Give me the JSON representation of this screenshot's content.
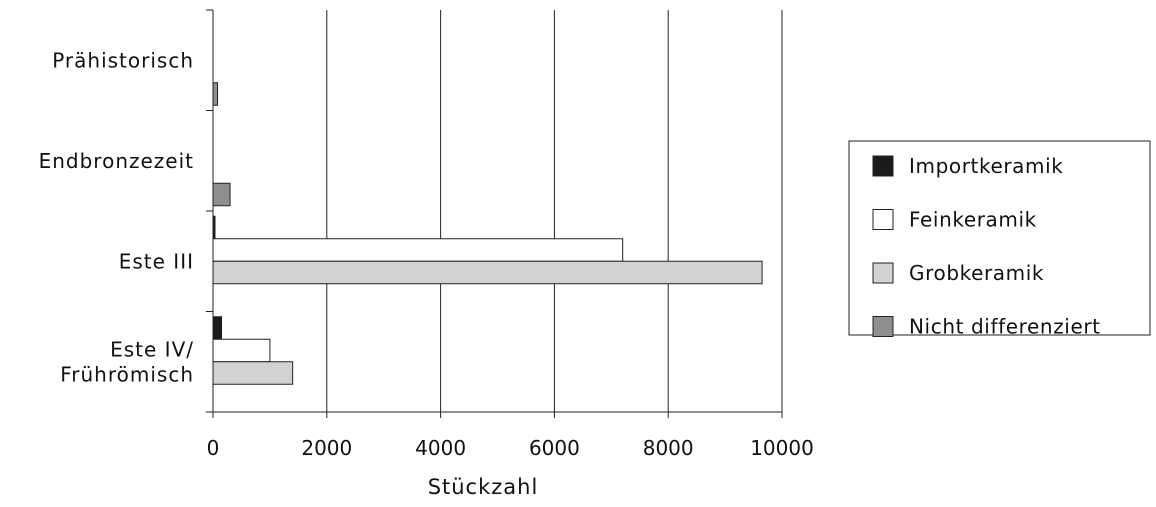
{
  "chart_data": {
    "type": "bar",
    "orientation": "horizontal",
    "categories": [
      [
        "Prähistorisch"
      ],
      [
        "Endbronzezeit"
      ],
      [
        "Este III"
      ],
      [
        "Este IV/",
        "Frührömisch"
      ]
    ],
    "series": [
      {
        "name": "Importkeramik",
        "color": "#1c1a1b",
        "values": [
          0,
          0,
          20,
          150
        ]
      },
      {
        "name": "Feinkeramik",
        "color": "#ffffff",
        "values": [
          0,
          0,
          7200,
          1000
        ]
      },
      {
        "name": "Grobkeramik",
        "color": "#d2d2d2",
        "values": [
          0,
          0,
          9650,
          1400
        ]
      },
      {
        "name": "Nicht differenziert",
        "color": "#8f8f8f",
        "values": [
          80,
          300,
          0,
          0
        ]
      }
    ],
    "xlim": [
      0,
      10000
    ],
    "xticks": [
      0,
      2000,
      4000,
      6000,
      8000,
      10000
    ],
    "xlabel": "Stückzahl",
    "ylabel": "",
    "grid": "vertical",
    "legend": "right"
  }
}
